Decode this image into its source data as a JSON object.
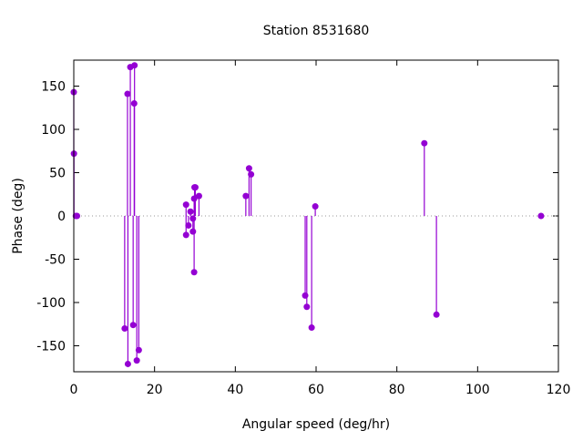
{
  "chart_data": {
    "type": "scatter",
    "style": "impulses",
    "title": "Station 8531680",
    "xlabel": "Angular speed (deg/hr)",
    "ylabel": "Phase (deg)",
    "xlim": [
      0,
      120
    ],
    "ylim": [
      -180,
      180
    ],
    "xticks": [
      0,
      20,
      40,
      60,
      80,
      100,
      120
    ],
    "yticks": [
      -150,
      -100,
      -50,
      0,
      50,
      100,
      150
    ],
    "grid": false,
    "color": "#9400d3",
    "points": [
      [
        0.0,
        143
      ],
      [
        0.04,
        72
      ],
      [
        0.5,
        0
      ],
      [
        0.8,
        0
      ],
      [
        12.6,
        -130
      ],
      [
        13.3,
        141
      ],
      [
        13.4,
        -171
      ],
      [
        14.0,
        172
      ],
      [
        14.7,
        -126
      ],
      [
        14.96,
        130
      ],
      [
        15.04,
        174
      ],
      [
        15.6,
        -167
      ],
      [
        16.1,
        -155
      ],
      [
        27.8,
        13
      ],
      [
        27.8,
        -22
      ],
      [
        28.4,
        -11
      ],
      [
        28.9,
        5
      ],
      [
        29.5,
        -3
      ],
      [
        29.5,
        -18
      ],
      [
        29.8,
        20
      ],
      [
        29.8,
        -65
      ],
      [
        29.9,
        33
      ],
      [
        30.1,
        33
      ],
      [
        31.0,
        23
      ],
      [
        42.6,
        23
      ],
      [
        43.4,
        55
      ],
      [
        43.9,
        48
      ],
      [
        57.3,
        -92
      ],
      [
        57.7,
        -105
      ],
      [
        58.9,
        -129
      ],
      [
        59.8,
        11
      ],
      [
        86.8,
        84
      ],
      [
        89.8,
        -114
      ],
      [
        115.7,
        0
      ]
    ]
  }
}
